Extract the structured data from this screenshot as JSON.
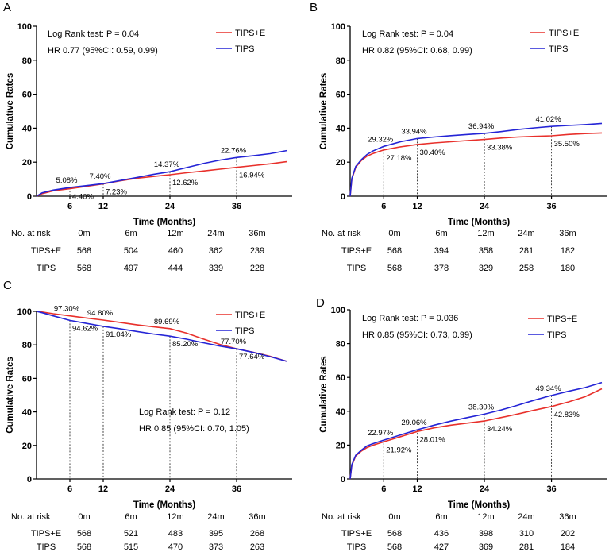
{
  "colors": {
    "red": "#e8302b",
    "blue": "#2424d6",
    "axis": "#000000"
  },
  "chart_data": [
    {
      "panel": "A",
      "type": "line",
      "xlabel": "Time (Months)",
      "ylabel": "Cumulative Rates",
      "xlim": [
        0,
        46
      ],
      "ylim": [
        0,
        100
      ],
      "xticks": [
        6,
        12,
        24,
        36
      ],
      "yticks": [
        0,
        20,
        40,
        60,
        80,
        100
      ],
      "stats": [
        "Log Rank test: P = 0.04",
        "HR 0.77 (95%CI: 0.59, 0.99)"
      ],
      "stats_position": "top-left",
      "legend": [
        "TIPS+E",
        "TIPS"
      ],
      "series": [
        {
          "name": "TIPS+E",
          "x": [
            0,
            1,
            3,
            6,
            9,
            12,
            15,
            18,
            21,
            24,
            27,
            30,
            33,
            36,
            39,
            42,
            45
          ],
          "y": [
            0,
            1.5,
            3.2,
            4.4,
            5.8,
            7.23,
            9.0,
            10.5,
            11.6,
            12.62,
            13.8,
            14.8,
            15.9,
            16.94,
            18.0,
            19.0,
            20.3
          ]
        },
        {
          "name": "TIPS",
          "x": [
            0,
            1,
            3,
            6,
            9,
            12,
            15,
            18,
            21,
            24,
            27,
            30,
            33,
            36,
            39,
            42,
            45
          ],
          "y": [
            0,
            2.0,
            3.6,
            5.08,
            6.2,
            7.4,
            9.2,
            11.0,
            12.8,
            14.37,
            16.8,
            19.2,
            21.2,
            22.76,
            23.8,
            25.0,
            26.8
          ]
        }
      ],
      "annotations": [
        {
          "text": "5.08%",
          "x": 6,
          "y": 5.08,
          "series": "TIPS",
          "pos": "above"
        },
        {
          "text": "4.40%",
          "x": 6,
          "y": 4.4,
          "series": "TIPS+E",
          "pos": "below"
        },
        {
          "text": "7.40%",
          "x": 12,
          "y": 7.4,
          "series": "TIPS",
          "pos": "above"
        },
        {
          "text": "7.23%",
          "x": 12,
          "y": 7.23,
          "series": "TIPS+E",
          "pos": "below"
        },
        {
          "text": "14.37%",
          "x": 24,
          "y": 14.37,
          "series": "TIPS",
          "pos": "above"
        },
        {
          "text": "12.62%",
          "x": 24,
          "y": 12.62,
          "series": "TIPS+E",
          "pos": "below"
        },
        {
          "text": "22.76%",
          "x": 36,
          "y": 22.76,
          "series": "TIPS",
          "pos": "above"
        },
        {
          "text": "16.94%",
          "x": 36,
          "y": 16.94,
          "series": "TIPS+E",
          "pos": "below"
        }
      ],
      "risk_table": {
        "title": "No. at risk",
        "columns": [
          "0m",
          "6m",
          "12m",
          "24m",
          "36m"
        ],
        "rows": [
          {
            "label": "TIPS+E",
            "values": [
              "568",
              "504",
              "460",
              "362",
              "239"
            ]
          },
          {
            "label": "TIPS",
            "values": [
              "568",
              "497",
              "444",
              "339",
              "228"
            ]
          }
        ]
      }
    },
    {
      "panel": "B",
      "type": "line",
      "xlabel": "Time (Months)",
      "ylabel": "Cumulative Rates",
      "xlim": [
        0,
        46
      ],
      "ylim": [
        0,
        100
      ],
      "xticks": [
        6,
        12,
        24,
        36
      ],
      "yticks": [
        0,
        20,
        40,
        60,
        80,
        100
      ],
      "stats": [
        "Log Rank test: P = 0.04",
        "HR 0.82 (95%CI: 0.68, 0.99)"
      ],
      "stats_position": "top-left",
      "legend": [
        "TIPS+E",
        "TIPS"
      ],
      "series": [
        {
          "name": "TIPS+E",
          "x": [
            0,
            0.3,
            1,
            2,
            3,
            4,
            6,
            9,
            12,
            15,
            18,
            21,
            24,
            27,
            30,
            33,
            36,
            39,
            42,
            45
          ],
          "y": [
            0,
            10,
            17,
            21,
            23.5,
            25,
            27.18,
            29.0,
            30.4,
            31.3,
            32.0,
            32.7,
            33.38,
            34.2,
            34.8,
            35.2,
            35.5,
            36.3,
            36.8,
            37.2
          ]
        },
        {
          "name": "TIPS",
          "x": [
            0,
            0.3,
            1,
            2,
            3,
            4,
            6,
            9,
            12,
            15,
            18,
            21,
            24,
            27,
            30,
            33,
            36,
            39,
            42,
            45
          ],
          "y": [
            0,
            10.5,
            17.5,
            21.5,
            24.5,
            26.5,
            29.32,
            32.0,
            33.94,
            34.8,
            35.6,
            36.3,
            36.94,
            38.0,
            39.2,
            40.2,
            41.02,
            41.6,
            42.1,
            42.8
          ]
        }
      ],
      "annotations": [
        {
          "text": "29.32%",
          "x": 6,
          "y": 29.32,
          "series": "TIPS",
          "pos": "above"
        },
        {
          "text": "27.18%",
          "x": 6,
          "y": 27.18,
          "series": "TIPS+E",
          "pos": "below"
        },
        {
          "text": "33.94%",
          "x": 12,
          "y": 33.94,
          "series": "TIPS",
          "pos": "above"
        },
        {
          "text": "30.40%",
          "x": 12,
          "y": 30.4,
          "series": "TIPS+E",
          "pos": "below"
        },
        {
          "text": "36.94%",
          "x": 24,
          "y": 36.94,
          "series": "TIPS",
          "pos": "above"
        },
        {
          "text": "33.38%",
          "x": 24,
          "y": 33.38,
          "series": "TIPS+E",
          "pos": "below"
        },
        {
          "text": "41.02%",
          "x": 36,
          "y": 41.02,
          "series": "TIPS",
          "pos": "above"
        },
        {
          "text": "35.50%",
          "x": 36,
          "y": 35.5,
          "series": "TIPS+E",
          "pos": "below"
        }
      ],
      "risk_table": {
        "title": "No. at risk",
        "columns": [
          "0m",
          "6m",
          "12m",
          "24m",
          "36m"
        ],
        "rows": [
          {
            "label": "TIPS+E",
            "values": [
              "568",
              "394",
              "358",
              "281",
              "182"
            ]
          },
          {
            "label": "TIPS",
            "values": [
              "568",
              "378",
              "329",
              "258",
              "180"
            ]
          }
        ]
      }
    },
    {
      "panel": "C",
      "type": "line",
      "xlabel": "Time (Months)",
      "ylabel": "Cumulative Rates",
      "xlim": [
        0,
        46
      ],
      "ylim": [
        0,
        100
      ],
      "xticks": [
        6,
        12,
        24,
        36
      ],
      "yticks": [
        0,
        20,
        40,
        60,
        80,
        100
      ],
      "stats": [
        "Log Rank test: P = 0.12",
        "HR 0.85 (95%CI: 0.70, 1.05)"
      ],
      "stats_position": "center-right",
      "legend": [
        "TIPS+E",
        "TIPS"
      ],
      "series": [
        {
          "name": "TIPS+E",
          "x": [
            0,
            1,
            3,
            6,
            9,
            12,
            15,
            18,
            21,
            24,
            27,
            30,
            33,
            36,
            39,
            42,
            45
          ],
          "y": [
            100,
            99.6,
            98.6,
            97.3,
            96.0,
            94.8,
            93.4,
            92.0,
            90.8,
            89.69,
            87.0,
            83.5,
            80.3,
            77.7,
            75.6,
            73.2,
            70.2
          ]
        },
        {
          "name": "TIPS",
          "x": [
            0,
            1,
            3,
            6,
            9,
            12,
            15,
            18,
            21,
            24,
            27,
            30,
            33,
            36,
            39,
            42,
            45
          ],
          "y": [
            100,
            99.2,
            97.3,
            94.62,
            92.8,
            91.04,
            89.6,
            88.0,
            86.5,
            85.2,
            83.4,
            81.3,
            79.3,
            77.64,
            75.5,
            73.0,
            70.2
          ]
        }
      ],
      "annotations": [
        {
          "text": "97.30%",
          "x": 6,
          "y": 97.3,
          "series": "TIPS+E",
          "pos": "above"
        },
        {
          "text": "94.62%",
          "x": 6,
          "y": 94.62,
          "series": "TIPS",
          "pos": "below"
        },
        {
          "text": "94.80%",
          "x": 12,
          "y": 94.8,
          "series": "TIPS+E",
          "pos": "above"
        },
        {
          "text": "91.04%",
          "x": 12,
          "y": 91.04,
          "series": "TIPS",
          "pos": "below"
        },
        {
          "text": "89.69%",
          "x": 24,
          "y": 89.69,
          "series": "TIPS+E",
          "pos": "above"
        },
        {
          "text": "85.20%",
          "x": 24,
          "y": 85.2,
          "series": "TIPS",
          "pos": "below"
        },
        {
          "text": "77.70%",
          "x": 36,
          "y": 77.7,
          "series": "TIPS+E",
          "pos": "above"
        },
        {
          "text": "77.64%",
          "x": 36,
          "y": 77.64,
          "series": "TIPS",
          "pos": "below"
        }
      ],
      "risk_table": {
        "title": "No. at risk",
        "columns": [
          "0m",
          "6m",
          "12m",
          "24m",
          "36m"
        ],
        "rows": [
          {
            "label": "TIPS+E",
            "values": [
              "568",
              "521",
              "483",
              "395",
              "268"
            ]
          },
          {
            "label": "TIPS",
            "values": [
              "568",
              "515",
              "470",
              "373",
              "263"
            ]
          }
        ]
      }
    },
    {
      "panel": "D",
      "type": "line",
      "xlabel": "Time (Months)",
      "ylabel": "Cumulative Rates",
      "xlim": [
        0,
        46
      ],
      "ylim": [
        0,
        100
      ],
      "xticks": [
        6,
        12,
        24,
        36
      ],
      "yticks": [
        0,
        20,
        40,
        60,
        80,
        100
      ],
      "stats": [
        "Log Rank test: P = 0.036",
        "HR 0.85 (95%CI: 0.73, 0.99)"
      ],
      "stats_position": "top-left",
      "legend": [
        "TIPS+E",
        "TIPS"
      ],
      "series": [
        {
          "name": "TIPS+E",
          "x": [
            0,
            0.3,
            1,
            2,
            3,
            4,
            6,
            9,
            12,
            15,
            18,
            21,
            24,
            27,
            30,
            33,
            36,
            39,
            42,
            45
          ],
          "y": [
            0,
            8,
            13.5,
            16.5,
            18.5,
            19.8,
            21.92,
            25.0,
            28.01,
            30.2,
            31.8,
            33.0,
            34.24,
            36.3,
            38.4,
            40.7,
            42.83,
            45.5,
            48.6,
            53.3
          ]
        },
        {
          "name": "TIPS",
          "x": [
            0,
            0.3,
            1,
            2,
            3,
            4,
            6,
            9,
            12,
            15,
            18,
            21,
            24,
            27,
            30,
            33,
            36,
            39,
            42,
            45
          ],
          "y": [
            0,
            8.5,
            14,
            17,
            19.5,
            20.8,
            22.97,
            26.0,
            29.06,
            31.8,
            34.2,
            36.3,
            38.3,
            40.8,
            43.6,
            46.6,
            49.34,
            51.8,
            54.0,
            57.0
          ]
        }
      ],
      "annotations": [
        {
          "text": "22.97%",
          "x": 6,
          "y": 22.97,
          "series": "TIPS",
          "pos": "above"
        },
        {
          "text": "21.92%",
          "x": 6,
          "y": 21.92,
          "series": "TIPS+E",
          "pos": "below"
        },
        {
          "text": "29.06%",
          "x": 12,
          "y": 29.06,
          "series": "TIPS",
          "pos": "above"
        },
        {
          "text": "28.01%",
          "x": 12,
          "y": 28.01,
          "series": "TIPS+E",
          "pos": "below"
        },
        {
          "text": "38.30%",
          "x": 24,
          "y": 38.3,
          "series": "TIPS",
          "pos": "above"
        },
        {
          "text": "34.24%",
          "x": 24,
          "y": 34.24,
          "series": "TIPS+E",
          "pos": "below"
        },
        {
          "text": "49.34%",
          "x": 36,
          "y": 49.34,
          "series": "TIPS",
          "pos": "above"
        },
        {
          "text": "42.83%",
          "x": 36,
          "y": 42.83,
          "series": "TIPS+E",
          "pos": "below"
        }
      ],
      "risk_table": {
        "title": "No. at risk",
        "columns": [
          "0m",
          "6m",
          "12m",
          "24m",
          "36m"
        ],
        "rows": [
          {
            "label": "TIPS+E",
            "values": [
              "568",
              "436",
              "398",
              "310",
              "202"
            ]
          },
          {
            "label": "TIPS",
            "values": [
              "568",
              "427",
              "369",
              "281",
              "184"
            ]
          }
        ]
      }
    }
  ]
}
